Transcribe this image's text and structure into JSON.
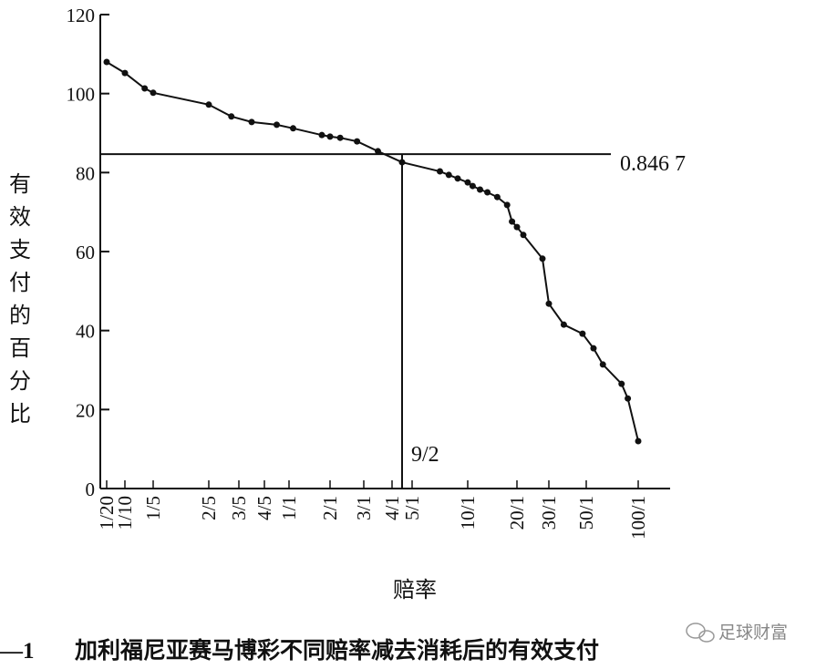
{
  "chart_data": {
    "type": "line",
    "caption_number": "—1",
    "caption": "加利福尼亚赛马博彩不同赔率减去消耗后的有效支付",
    "xlabel": "赔率",
    "ylabel": "有效支付的百分比",
    "watermark": "足球财富",
    "ylim": [
      0,
      120
    ],
    "yticks": [
      0,
      20,
      40,
      60,
      80,
      100,
      120
    ],
    "xticks": [
      {
        "value": 0.05,
        "label": "1/20"
      },
      {
        "value": 0.1,
        "label": "1/10"
      },
      {
        "value": 0.2,
        "label": "1/5"
      },
      {
        "value": 0.4,
        "label": "2/5"
      },
      {
        "value": 0.6,
        "label": "3/5"
      },
      {
        "value": 0.8,
        "label": "4/5"
      },
      {
        "value": 1,
        "label": "1/1"
      },
      {
        "value": 2,
        "label": "2/1"
      },
      {
        "value": 3,
        "label": "3/1"
      },
      {
        "value": 4,
        "label": "4/1"
      },
      {
        "value": 5,
        "label": "5/1"
      },
      {
        "value": 10,
        "label": "10/1"
      },
      {
        "value": 20,
        "label": "20/1"
      },
      {
        "value": 30,
        "label": "30/1"
      },
      {
        "value": 50,
        "label": "50/1"
      },
      {
        "value": 100,
        "label": "100/1"
      }
    ],
    "series": [
      {
        "name": "有效支付",
        "color": "#111111",
        "x": [
          0.05,
          0.1,
          0.17,
          0.2,
          0.4,
          0.55,
          0.7,
          0.9,
          1.1,
          1.8,
          2,
          2.3,
          2.8,
          3.5,
          4.5,
          7.5,
          8.3,
          9.1,
          10,
          11,
          12.5,
          14,
          16,
          18,
          19,
          20,
          22,
          28,
          30,
          38,
          48,
          57,
          66,
          84,
          90,
          100
        ],
        "values": [
          108,
          105.2,
          101.3,
          100.2,
          97.2,
          94.2,
          92.8,
          92.1,
          91.2,
          89.5,
          89.1,
          88.8,
          87.9,
          85.4,
          82.6,
          80.3,
          79.4,
          78.5,
          77.5,
          76.6,
          75.7,
          75,
          73.8,
          71.8,
          67.6,
          66.2,
          64.2,
          58.2,
          46.8,
          41.5,
          39.2,
          35.5,
          31.4,
          26.5,
          22.8,
          12
        ]
      }
    ],
    "reference_lines": [
      {
        "axis": "y",
        "value": 84.67,
        "label": "0.846 7"
      },
      {
        "axis": "x",
        "value": 4.5,
        "label": "9/2"
      }
    ]
  }
}
